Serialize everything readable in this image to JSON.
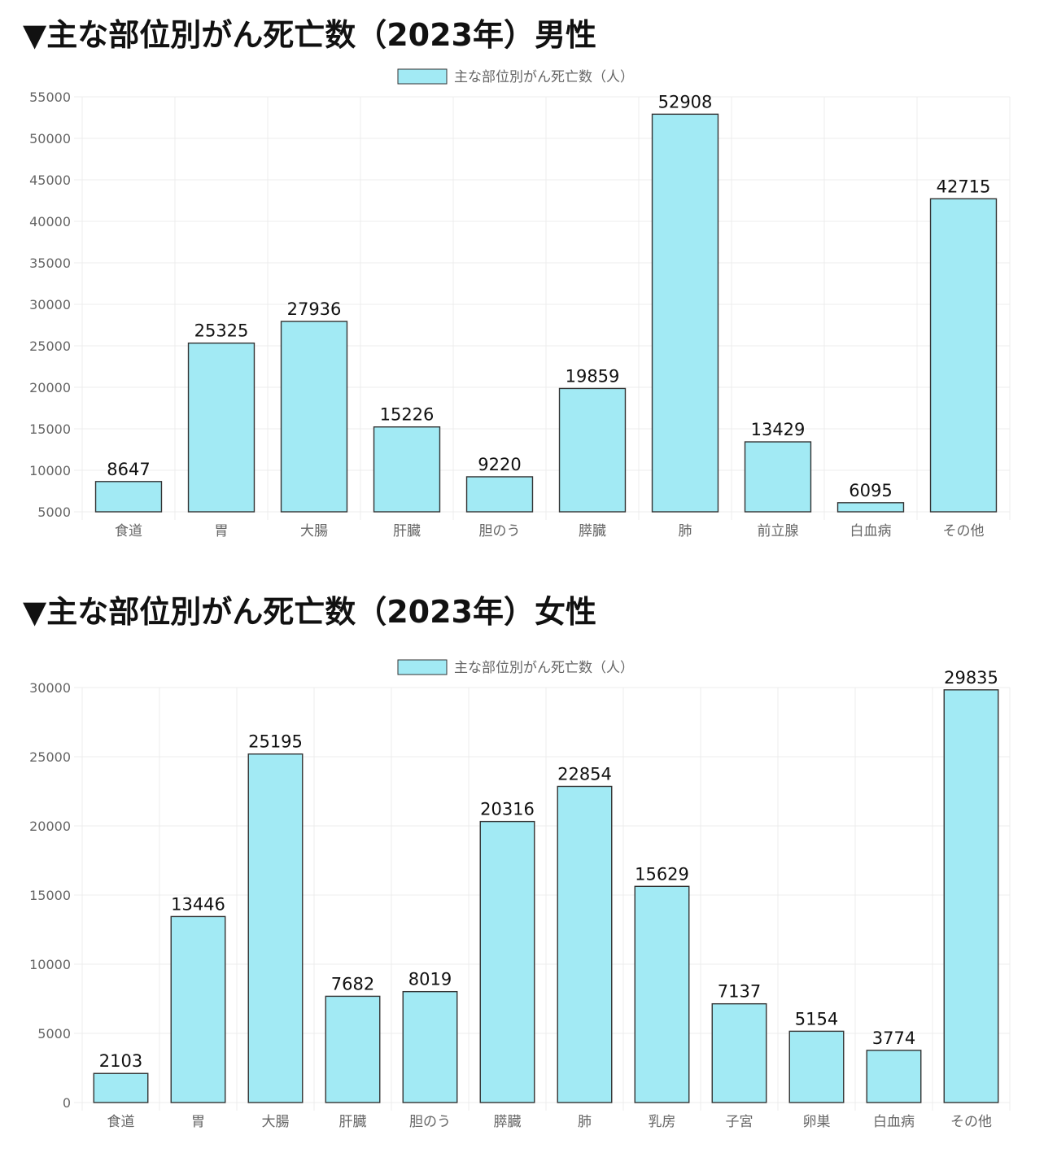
{
  "colors": {
    "bar_fill": "#a2eaf4",
    "bar_stroke": "#333333",
    "grid": "#ececec",
    "tick_text": "#666666",
    "label_text": "#111111"
  },
  "chart_data": [
    {
      "type": "bar",
      "title": "▼主な部位別がん死亡数（2023年）男性",
      "legend": "主な部位別がん死亡数（人）",
      "legend_position": "top-center",
      "grid": true,
      "ylim": [
        5000,
        55000
      ],
      "yticks": [
        5000,
        10000,
        15000,
        20000,
        25000,
        30000,
        35000,
        40000,
        45000,
        50000,
        55000
      ],
      "categories": [
        "食道",
        "胃",
        "大腸",
        "肝臓",
        "胆のう",
        "膵臓",
        "肺",
        "前立腺",
        "白血病",
        "その他"
      ],
      "series": [
        {
          "name": "主な部位別がん死亡数（人）",
          "values": [
            8647,
            25325,
            27936,
            15226,
            9220,
            19859,
            52908,
            13429,
            6095,
            42715
          ]
        }
      ]
    },
    {
      "type": "bar",
      "title": "▼主な部位別がん死亡数（2023年）女性",
      "legend": "主な部位別がん死亡数（人）",
      "legend_position": "top-center",
      "grid": true,
      "ylim": [
        0,
        30000
      ],
      "yticks": [
        0,
        5000,
        10000,
        15000,
        20000,
        25000,
        30000
      ],
      "categories": [
        "食道",
        "胃",
        "大腸",
        "肝臓",
        "胆のう",
        "膵臓",
        "肺",
        "乳房",
        "子宮",
        "卵巣",
        "白血病",
        "その他"
      ],
      "series": [
        {
          "name": "主な部位別がん死亡数（人）",
          "values": [
            2103,
            13446,
            25195,
            7682,
            8019,
            20316,
            22854,
            15629,
            7137,
            5154,
            3774,
            29835
          ]
        }
      ]
    }
  ]
}
